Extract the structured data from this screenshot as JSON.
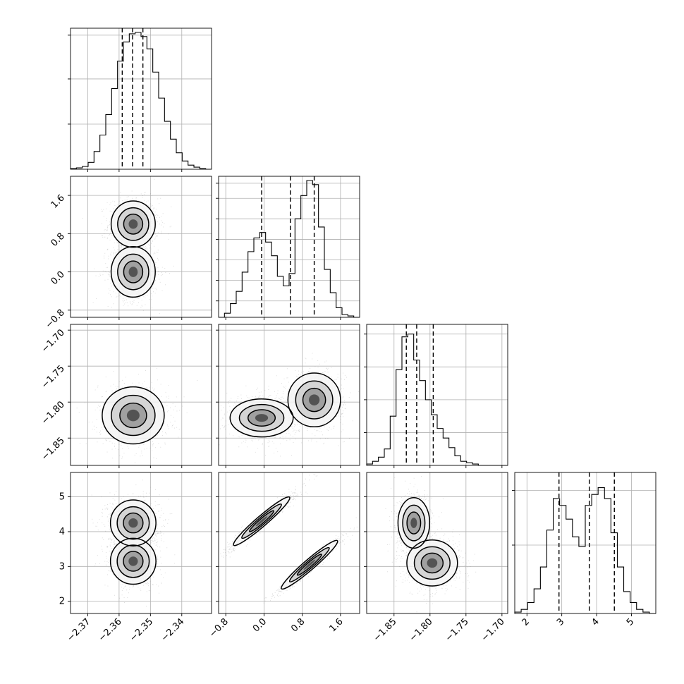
{
  "chart_data": {
    "type": "scatter",
    "title": "",
    "colors": {
      "line": "#000000",
      "grid": "#b0b0b0",
      "points": "#555555"
    },
    "grid": true,
    "diagonal_quantile_lines": "dashed",
    "params": [
      {
        "range": [
          -2.3755,
          -2.3305
        ],
        "ticks": [
          -2.37,
          -2.36,
          -2.35,
          -2.34
        ],
        "tick_labels": [
          "−2.37",
          "−2.36",
          "−2.35",
          "−2.34"
        ],
        "quantiles": [
          -2.359,
          -2.3557,
          -2.3524
        ],
        "peaks": [
          {
            "mu": -2.3557,
            "sd": 0.0042,
            "w": 1.0
          }
        ],
        "hist": [
          0.005,
          0.01,
          0.02,
          0.05,
          0.13,
          0.25,
          0.4,
          0.59,
          0.79,
          0.93,
          0.99,
          1.0,
          0.97,
          0.88,
          0.71,
          0.52,
          0.35,
          0.22,
          0.12,
          0.06,
          0.03,
          0.015,
          0.005,
          0.0
        ],
        "hist_ticks": [
          0.33,
          0.66,
          0.98
        ]
      },
      {
        "range": [
          -0.95,
          2.0
        ],
        "ticks": [
          -0.8,
          0.0,
          0.8,
          1.6
        ],
        "tick_labels": [
          "−0.8",
          "0.0",
          "0.8",
          "1.6"
        ],
        "quantiles": [
          -0.05,
          0.55,
          1.05
        ],
        "peaks": [
          {
            "mu": 0.0,
            "sd": 0.28,
            "w": 0.42
          },
          {
            "mu": 1.0,
            "sd": 0.26,
            "w": 0.58
          }
        ],
        "hist": [
          0.0,
          0.03,
          0.1,
          0.19,
          0.33,
          0.48,
          0.58,
          0.62,
          0.55,
          0.45,
          0.3,
          0.23,
          0.32,
          0.72,
          0.89,
          1.0,
          0.97,
          0.66,
          0.35,
          0.18,
          0.07,
          0.02,
          0.01,
          0.0
        ],
        "hist_ticks": [
          0.12,
          0.27,
          0.42,
          0.57,
          0.72,
          0.87,
          0.98
        ]
      },
      {
        "range": [
          -1.888,
          -1.692
        ],
        "ticks": [
          -1.85,
          -1.8,
          -1.75,
          -1.7
        ],
        "tick_labels": [
          "−1.85",
          "−1.80",
          "−1.75",
          "−1.70"
        ],
        "quantiles": [
          -1.8329,
          -1.8185,
          -1.7955
        ],
        "peaks": [
          {
            "mu": -1.8215,
            "sd": 0.011,
            "w": 0.6
          },
          {
            "mu": -1.797,
            "sd": 0.016,
            "w": 0.4
          }
        ],
        "hist": [
          0.01,
          0.03,
          0.06,
          0.12,
          0.36,
          0.7,
          0.94,
          0.96,
          0.77,
          0.62,
          0.48,
          0.37,
          0.27,
          0.2,
          0.13,
          0.07,
          0.03,
          0.02,
          0.01,
          0.0,
          0.0,
          0.0,
          0.0,
          0.0
        ],
        "hist_ticks": [
          0.24,
          0.48,
          0.72,
          0.96
        ]
      },
      {
        "range": [
          1.65,
          5.7
        ],
        "ticks": [
          2,
          3,
          4,
          5
        ],
        "tick_labels": [
          "2",
          "3",
          "4",
          "5"
        ],
        "quantiles": [
          2.92,
          3.79,
          4.51
        ],
        "peaks": [
          {
            "mu": 3.12,
            "sd": 0.34,
            "w": 0.45
          },
          {
            "mu": 4.3,
            "sd": 0.33,
            "w": 0.55
          }
        ],
        "hist": [
          0.01,
          0.03,
          0.08,
          0.18,
          0.34,
          0.61,
          0.84,
          0.79,
          0.69,
          0.56,
          0.49,
          0.79,
          0.87,
          0.92,
          0.84,
          0.59,
          0.34,
          0.16,
          0.08,
          0.03,
          0.01,
          0.0
        ],
        "hist_ticks": [
          0.5,
          0.9
        ]
      }
    ],
    "pairs": [
      {
        "x": 0,
        "y": 1,
        "rho": 0.0,
        "clusters": [
          {
            "mx": -2.3555,
            "my": 1.0,
            "sx": 0.0032,
            "sy": 0.22
          },
          {
            "mx": -2.3555,
            "my": 0.0,
            "sx": 0.0032,
            "sy": 0.24
          }
        ]
      },
      {
        "x": 0,
        "y": 2,
        "rho": 0.0,
        "clusters": [
          {
            "mx": -2.3555,
            "my": -1.8185,
            "sx": 0.0045,
            "sy": 0.018
          }
        ]
      },
      {
        "x": 1,
        "y": 2,
        "rho": 0.0,
        "clusters": [
          {
            "mx": -0.05,
            "my": -1.822,
            "sx": 0.3,
            "sy": 0.012
          },
          {
            "mx": 1.05,
            "my": -1.797,
            "sx": 0.25,
            "sy": 0.017
          }
        ]
      },
      {
        "x": 0,
        "y": 3,
        "rho": 0.0,
        "clusters": [
          {
            "mx": -2.3555,
            "my": 4.25,
            "sx": 0.0033,
            "sy": 0.3
          },
          {
            "mx": -2.3555,
            "my": 3.15,
            "sx": 0.0033,
            "sy": 0.3
          }
        ]
      },
      {
        "x": 1,
        "y": 3,
        "rho": 0.97,
        "clusters": [
          {
            "mx": -0.05,
            "my": 4.3,
            "sx": 0.28,
            "sy": 0.33
          },
          {
            "mx": 0.95,
            "my": 3.05,
            "sx": 0.28,
            "sy": 0.33
          }
        ]
      },
      {
        "x": 2,
        "y": 3,
        "rho": 0.0,
        "clusters": [
          {
            "mx": -1.8225,
            "my": 4.25,
            "sx": 0.01,
            "sy": 0.33
          },
          {
            "mx": -1.797,
            "my": 3.1,
            "sx": 0.016,
            "sy": 0.3
          }
        ]
      }
    ]
  }
}
